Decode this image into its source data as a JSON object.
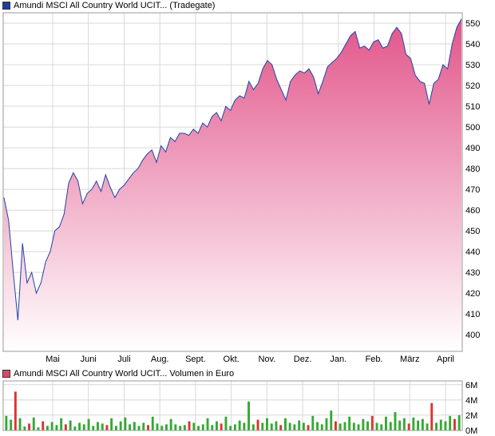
{
  "legend_price": {
    "label": "Amundi MSCI All Country World UCIT... (Tradegate)",
    "color": "#1f3f9f"
  },
  "legend_volume": {
    "label": "Amundi MSCI All Country World UCIT... Volumen in Euro",
    "color": "#d94a6a"
  },
  "colors": {
    "line": "#2340a8",
    "fill_top": "#e2558a",
    "fill_bottom": "#ffffff",
    "grid": "#d8d8d8",
    "vol_up": "#33aa33",
    "vol_down": "#dd3333"
  },
  "chart_data": [
    {
      "type": "area",
      "xlabel": "",
      "ylabel": "",
      "x_tick_labels": [
        "Mai",
        "Juni",
        "Juli",
        "Aug.",
        "Sept.",
        "Okt.",
        "Nov.",
        "Dez.",
        "Jan.",
        "Feb.",
        "März",
        "April"
      ],
      "y_ticks": [
        400,
        410,
        420,
        430,
        440,
        450,
        460,
        470,
        480,
        490,
        500,
        510,
        520,
        530,
        540,
        550
      ],
      "ylim": [
        392,
        555
      ],
      "series": [
        {
          "values": [
            466,
            455,
            430,
            407,
            444,
            425,
            430,
            420,
            425,
            435,
            440,
            450,
            452,
            458,
            473,
            478,
            474,
            463,
            468,
            470,
            474,
            469,
            477,
            471,
            466,
            470,
            472,
            475,
            478,
            480,
            484,
            487,
            489,
            483,
            491,
            488,
            495,
            493,
            497,
            497,
            496,
            499,
            497,
            502,
            500,
            505,
            507,
            503,
            510,
            508,
            513,
            515,
            514,
            522,
            518,
            521,
            528,
            532,
            530,
            523,
            518,
            513,
            522,
            525,
            527,
            526,
            528,
            524,
            516,
            522,
            529,
            531,
            533,
            536,
            540,
            544,
            546,
            538,
            539,
            537,
            541,
            542,
            538,
            539,
            545,
            548,
            545,
            535,
            533,
            525,
            522,
            521,
            511,
            521,
            523,
            530,
            528,
            540,
            548,
            552
          ]
        }
      ]
    },
    {
      "type": "bar",
      "xlabel": "",
      "ylabel": "",
      "y_tick_labels": [
        "0M",
        "2M",
        "4M",
        "6M"
      ],
      "ylim": [
        0,
        6.5
      ],
      "values": [
        1.9,
        1.4,
        5.1,
        1.6,
        0.5,
        0.9,
        1.7,
        0.4,
        1.2,
        0.6,
        1.1,
        0.7,
        1.6,
        0.8,
        1.3,
        0.5,
        1.0,
        0.8,
        1.5,
        0.6,
        1.1,
        0.9,
        0.7,
        1.6,
        0.6,
        1.2,
        1.7,
        0.8,
        1.1,
        0.6,
        1.0,
        0.7,
        1.8,
        0.9,
        0.6,
        0.8,
        1.5,
        0.8,
        0.6,
        0.7,
        1.2,
        1.0,
        0.6,
        0.8,
        1.6,
        0.7,
        1.2,
        0.9,
        1.8,
        0.6,
        0.8,
        1.3,
        1.0,
        3.8,
        0.8,
        1.4,
        1.0,
        1.6,
        0.9,
        1.2,
        0.7,
        1.6,
        1.0,
        0.8,
        1.3,
        1.0,
        0.7,
        1.9,
        1.1,
        0.8,
        1.6,
        2.6,
        1.2,
        0.9,
        1.1,
        1.8,
        1.0,
        0.8,
        1.5,
        1.2,
        1.9,
        1.0,
        0.8,
        1.8,
        1.1,
        2.4,
        1.3,
        1.6,
        0.9,
        1.7,
        1.3,
        1.5,
        0.9,
        3.6,
        1.0,
        1.4,
        1.2,
        1.9,
        1.5,
        2.0
      ],
      "down": [
        2,
        5,
        8,
        13,
        22,
        31,
        40,
        47,
        55,
        60,
        66,
        72,
        80,
        88,
        93,
        98
      ]
    }
  ]
}
